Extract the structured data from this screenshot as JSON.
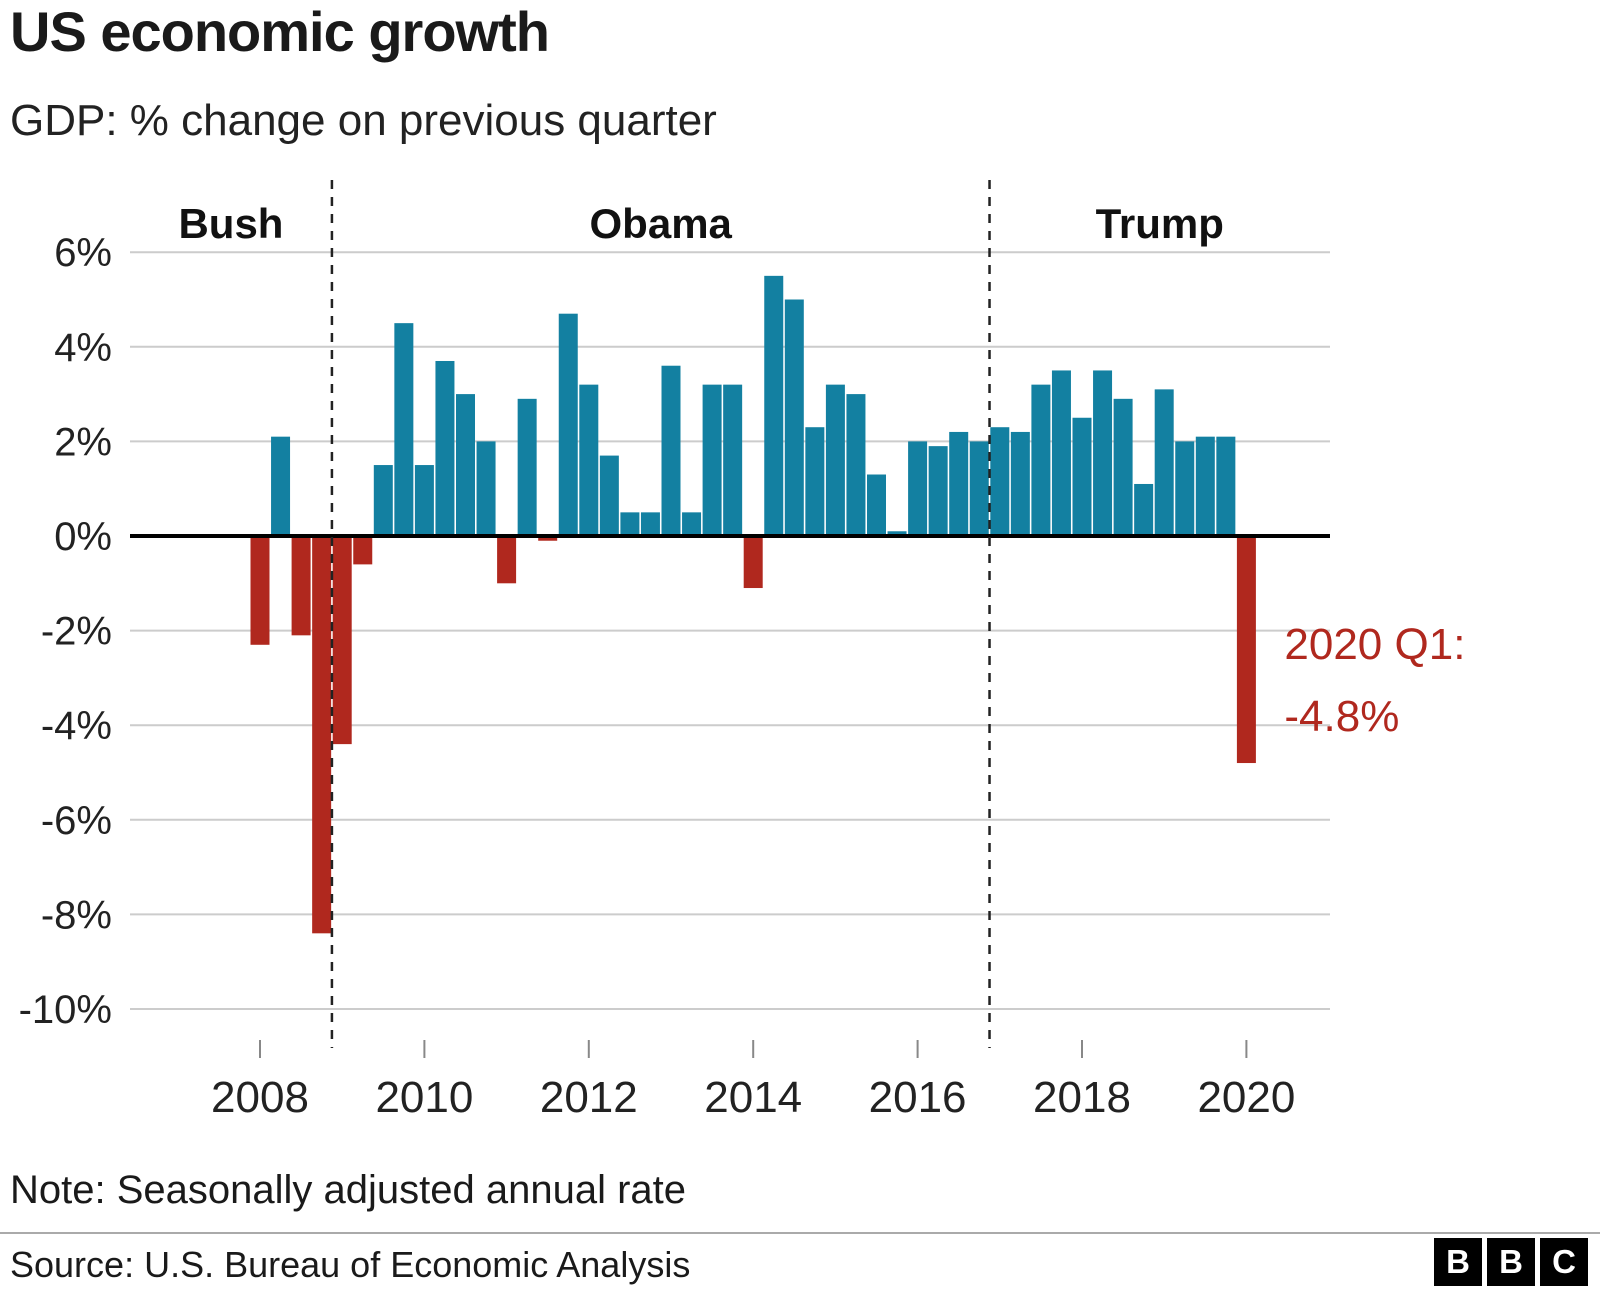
{
  "header": {
    "title": "US economic growth",
    "subtitle": "GDP: % change on previous quarter"
  },
  "chart_data": {
    "type": "bar",
    "title": "US economic growth",
    "subtitle": "GDP: % change on previous quarter",
    "x": [
      "2008 Q1",
      "2008 Q2",
      "2008 Q3",
      "2008 Q4",
      "2009 Q1",
      "2009 Q2",
      "2009 Q3",
      "2009 Q4",
      "2010 Q1",
      "2010 Q2",
      "2010 Q3",
      "2010 Q4",
      "2011 Q1",
      "2011 Q2",
      "2011 Q3",
      "2011 Q4",
      "2012 Q1",
      "2012 Q2",
      "2012 Q3",
      "2012 Q4",
      "2013 Q1",
      "2013 Q2",
      "2013 Q3",
      "2013 Q4",
      "2014 Q1",
      "2014 Q2",
      "2014 Q3",
      "2014 Q4",
      "2015 Q1",
      "2015 Q2",
      "2015 Q3",
      "2015 Q4",
      "2016 Q1",
      "2016 Q2",
      "2016 Q3",
      "2016 Q4",
      "2017 Q1",
      "2017 Q2",
      "2017 Q3",
      "2017 Q4",
      "2018 Q1",
      "2018 Q2",
      "2018 Q3",
      "2018 Q4",
      "2019 Q1",
      "2019 Q2",
      "2019 Q3",
      "2019 Q4",
      "2020 Q1"
    ],
    "values": [
      -2.3,
      2.1,
      -2.1,
      -8.4,
      -4.4,
      -0.6,
      1.5,
      4.5,
      1.5,
      3.7,
      3.0,
      2.0,
      -1.0,
      2.9,
      -0.1,
      4.7,
      3.2,
      1.7,
      0.5,
      0.5,
      3.6,
      0.5,
      3.2,
      3.2,
      -1.1,
      5.5,
      5.0,
      2.3,
      3.2,
      3.0,
      1.3,
      0.1,
      2.0,
      1.9,
      2.2,
      2.0,
      2.3,
      2.2,
      3.2,
      3.5,
      2.5,
      3.5,
      2.9,
      1.1,
      3.1,
      2.0,
      2.1,
      2.1,
      -4.8
    ],
    "positive_color": "#1380A1",
    "negative_color": "#b0281e",
    "ylim": [
      -10,
      6
    ],
    "grid": true,
    "yticks": [
      {
        "value": 6,
        "label": "6%"
      },
      {
        "value": 4,
        "label": "4%"
      },
      {
        "value": 2,
        "label": "2%"
      },
      {
        "value": 0,
        "label": "0%"
      },
      {
        "value": -2,
        "label": "-2%"
      },
      {
        "value": -4,
        "label": "-4%"
      },
      {
        "value": -6,
        "label": "-6%"
      },
      {
        "value": -8,
        "label": "-8%"
      },
      {
        "value": -10,
        "label": "-10%"
      }
    ],
    "xticks": [
      {
        "label": "2008",
        "index": 0
      },
      {
        "label": "2010",
        "index": 8
      },
      {
        "label": "2012",
        "index": 16
      },
      {
        "label": "2014",
        "index": 24
      },
      {
        "label": "2016",
        "index": 32
      },
      {
        "label": "2018",
        "index": 40
      },
      {
        "label": "2020",
        "index": 48
      }
    ],
    "eras": [
      {
        "label": "Bush"
      },
      {
        "label": "Obama"
      },
      {
        "label": "Trump"
      }
    ],
    "era_divider_indices": [
      3.5,
      35.5
    ],
    "annotation": {
      "lines": [
        "2020 Q1:",
        "-4.8%"
      ],
      "index": 48,
      "color": "#b0281e"
    }
  },
  "footer": {
    "note": "Note: Seasonally adjusted annual rate",
    "source": "Source: U.S. Bureau of Economic Analysis",
    "logo_letters": [
      "B",
      "B",
      "C"
    ]
  }
}
